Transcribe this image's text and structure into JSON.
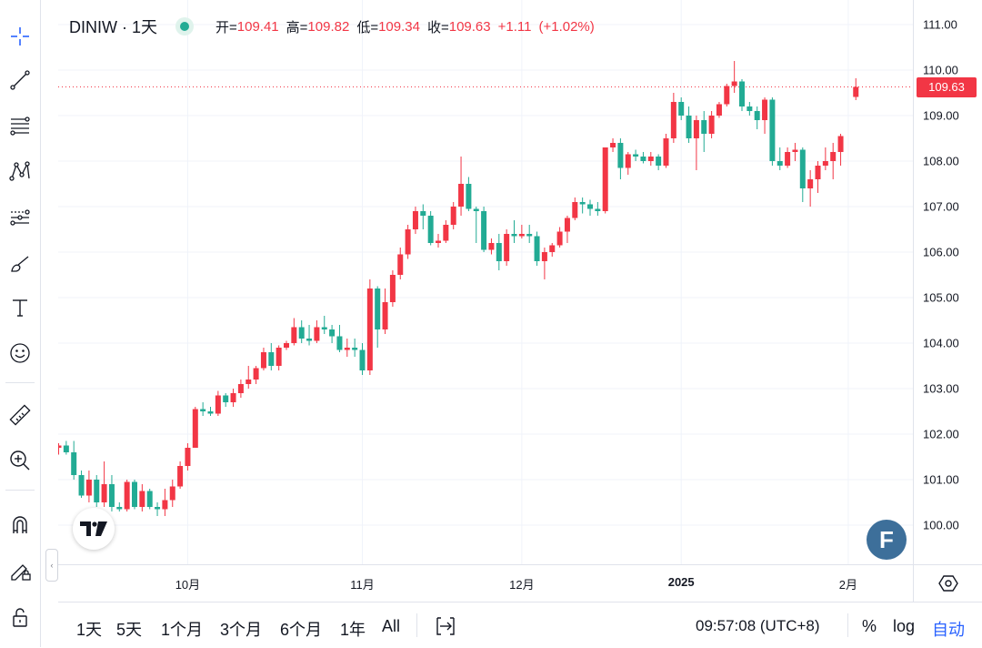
{
  "legend": {
    "symbol": "DINIW · 1天",
    "open_label": "开=",
    "open": "109.41",
    "high_label": "高=",
    "high": "109.82",
    "low_label": "低=",
    "low": "109.34",
    "close_label": "收=",
    "close": "109.63",
    "change": "+1.11",
    "change_pct": "(+1.02%)"
  },
  "price_axis": {
    "labels": [
      "111.00",
      "110.00",
      "109.00",
      "108.00",
      "107.00",
      "106.00",
      "105.00",
      "104.00",
      "103.00",
      "102.00",
      "101.00",
      "100.00"
    ],
    "last_price": "109.63"
  },
  "time_axis": {
    "labels": [
      {
        "text": "10月",
        "bold": false,
        "index": 17
      },
      {
        "text": "11月",
        "bold": false,
        "index": 40
      },
      {
        "text": "12月",
        "bold": false,
        "index": 61
      },
      {
        "text": "2025",
        "bold": true,
        "index": 82
      },
      {
        "text": "2月",
        "bold": false,
        "index": 104
      }
    ]
  },
  "bottom_bar": {
    "ranges": [
      "1天",
      "5天",
      "1个月",
      "3个月",
      "6个月",
      "1年",
      "All"
    ],
    "clock": "09:57:08 (UTC+8)",
    "percent": "%",
    "log": "log",
    "auto": "自动"
  },
  "logos": {
    "f": "F"
  },
  "colors": {
    "up": "#f23645",
    "down": "#22ab94",
    "grid": "#f0f3fa"
  },
  "chart_data": {
    "type": "candlestick",
    "title": "DINIW · 1天",
    "y_range": [
      99.3,
      111.4
    ],
    "last_price": 109.63,
    "candles": [
      [
        101.7,
        101.8,
        101.55,
        101.75
      ],
      [
        101.75,
        101.85,
        101.55,
        101.6
      ],
      [
        101.6,
        101.85,
        101.0,
        101.1
      ],
      [
        101.1,
        101.2,
        100.6,
        100.65
      ],
      [
        100.65,
        101.2,
        100.5,
        101.0
      ],
      [
        101.0,
        101.1,
        100.4,
        100.5
      ],
      [
        100.5,
        101.4,
        100.4,
        100.9
      ],
      [
        100.9,
        101.1,
        100.3,
        100.4
      ],
      [
        100.4,
        100.5,
        100.3,
        100.35
      ],
      [
        100.35,
        101.0,
        100.3,
        100.95
      ],
      [
        100.95,
        101.0,
        100.35,
        100.4
      ],
      [
        100.4,
        100.9,
        100.3,
        100.75
      ],
      [
        100.75,
        100.8,
        100.35,
        100.4
      ],
      [
        100.4,
        100.5,
        100.2,
        100.35
      ],
      [
        100.35,
        100.8,
        100.2,
        100.55
      ],
      [
        100.55,
        101.0,
        100.4,
        100.85
      ],
      [
        100.85,
        101.4,
        100.8,
        101.3
      ],
      [
        101.3,
        101.8,
        101.2,
        101.7
      ],
      [
        101.7,
        102.6,
        101.7,
        102.55
      ],
      [
        102.55,
        102.7,
        102.4,
        102.5
      ],
      [
        102.5,
        102.6,
        102.4,
        102.45
      ],
      [
        102.45,
        102.95,
        102.4,
        102.85
      ],
      [
        102.85,
        102.9,
        102.6,
        102.7
      ],
      [
        102.7,
        103.0,
        102.6,
        102.9
      ],
      [
        102.9,
        103.2,
        102.8,
        103.1
      ],
      [
        103.1,
        103.5,
        103.0,
        103.2
      ],
      [
        103.2,
        103.5,
        103.1,
        103.45
      ],
      [
        103.45,
        103.9,
        103.4,
        103.8
      ],
      [
        103.8,
        104.0,
        103.4,
        103.5
      ],
      [
        103.5,
        103.95,
        103.4,
        103.9
      ],
      [
        103.9,
        104.05,
        103.85,
        104.0
      ],
      [
        104.0,
        104.55,
        103.95,
        104.35
      ],
      [
        104.35,
        104.5,
        104.0,
        104.1
      ],
      [
        104.1,
        104.4,
        103.95,
        104.05
      ],
      [
        104.05,
        104.5,
        104.0,
        104.35
      ],
      [
        104.35,
        104.6,
        104.2,
        104.3
      ],
      [
        104.3,
        104.4,
        104.0,
        104.15
      ],
      [
        104.15,
        104.4,
        103.8,
        103.85
      ],
      [
        103.85,
        104.1,
        103.7,
        103.9
      ],
      [
        103.9,
        104.1,
        103.7,
        103.85
      ],
      [
        103.85,
        104.0,
        103.3,
        103.4
      ],
      [
        103.4,
        105.4,
        103.3,
        105.2
      ],
      [
        105.2,
        105.25,
        103.9,
        104.3
      ],
      [
        104.3,
        105.2,
        104.2,
        104.9
      ],
      [
        104.9,
        105.6,
        104.8,
        105.5
      ],
      [
        105.5,
        106.1,
        105.4,
        105.95
      ],
      [
        105.95,
        106.6,
        105.85,
        106.5
      ],
      [
        106.5,
        107.0,
        106.4,
        106.9
      ],
      [
        106.9,
        107.05,
        106.5,
        106.8
      ],
      [
        106.8,
        106.9,
        106.15,
        106.2
      ],
      [
        106.2,
        106.4,
        106.1,
        106.25
      ],
      [
        106.25,
        106.7,
        106.2,
        106.6
      ],
      [
        106.6,
        107.1,
        106.5,
        107.0
      ],
      [
        107.0,
        108.1,
        106.8,
        107.5
      ],
      [
        107.5,
        107.65,
        106.9,
        106.95
      ],
      [
        106.95,
        107.0,
        106.2,
        106.9
      ],
      [
        106.9,
        107.0,
        106.0,
        106.05
      ],
      [
        106.05,
        106.3,
        105.95,
        106.2
      ],
      [
        106.2,
        106.4,
        105.6,
        105.8
      ],
      [
        105.8,
        106.5,
        105.7,
        106.4
      ],
      [
        106.4,
        106.7,
        106.2,
        106.35
      ],
      [
        106.35,
        106.6,
        106.3,
        106.4
      ],
      [
        106.4,
        106.6,
        106.2,
        106.35
      ],
      [
        106.35,
        106.45,
        105.7,
        105.8
      ],
      [
        105.8,
        106.1,
        105.4,
        106.0
      ],
      [
        106.0,
        106.2,
        105.9,
        106.15
      ],
      [
        106.15,
        106.55,
        106.1,
        106.45
      ],
      [
        106.45,
        106.8,
        106.2,
        106.75
      ],
      [
        106.75,
        107.2,
        106.7,
        107.1
      ],
      [
        107.1,
        107.2,
        106.85,
        107.05
      ],
      [
        107.05,
        107.15,
        106.8,
        106.95
      ],
      [
        106.95,
        107.1,
        106.8,
        106.9
      ],
      [
        106.9,
        108.3,
        106.85,
        108.3
      ],
      [
        108.3,
        108.5,
        108.2,
        108.4
      ],
      [
        108.4,
        108.5,
        107.6,
        107.85
      ],
      [
        107.85,
        108.2,
        107.7,
        108.15
      ],
      [
        108.15,
        108.25,
        108.0,
        108.1
      ],
      [
        108.1,
        108.2,
        107.95,
        108.0
      ],
      [
        108.0,
        108.2,
        107.9,
        108.1
      ],
      [
        108.1,
        108.15,
        107.8,
        107.9
      ],
      [
        107.9,
        108.6,
        107.85,
        108.5
      ],
      [
        108.5,
        109.5,
        108.4,
        109.3
      ],
      [
        109.3,
        109.4,
        108.9,
        109.0
      ],
      [
        109.0,
        109.2,
        108.4,
        108.5
      ],
      [
        108.5,
        109.0,
        107.8,
        108.9
      ],
      [
        108.9,
        109.1,
        108.2,
        108.6
      ],
      [
        108.6,
        109.1,
        108.5,
        109.0
      ],
      [
        109.0,
        109.3,
        108.95,
        109.25
      ],
      [
        109.25,
        109.7,
        109.2,
        109.65
      ],
      [
        109.65,
        110.2,
        109.5,
        109.75
      ],
      [
        109.75,
        109.8,
        109.1,
        109.2
      ],
      [
        109.2,
        109.3,
        109.0,
        109.1
      ],
      [
        109.1,
        109.2,
        108.7,
        108.9
      ],
      [
        108.9,
        109.4,
        108.6,
        109.35
      ],
      [
        109.35,
        109.4,
        107.9,
        108.0
      ],
      [
        108.0,
        108.3,
        107.8,
        107.9
      ],
      [
        107.9,
        108.3,
        107.85,
        108.2
      ],
      [
        108.2,
        108.4,
        108.0,
        108.25
      ],
      [
        108.25,
        108.3,
        107.1,
        107.4
      ],
      [
        107.4,
        107.8,
        107.0,
        107.6
      ],
      [
        107.6,
        108.0,
        107.3,
        107.9
      ],
      [
        107.9,
        108.3,
        107.8,
        108.0
      ],
      [
        108.0,
        108.4,
        107.6,
        108.2
      ],
      [
        108.2,
        108.6,
        107.9,
        108.55
      ],
      null,
      [
        109.41,
        109.82,
        109.34,
        109.63
      ]
    ]
  }
}
